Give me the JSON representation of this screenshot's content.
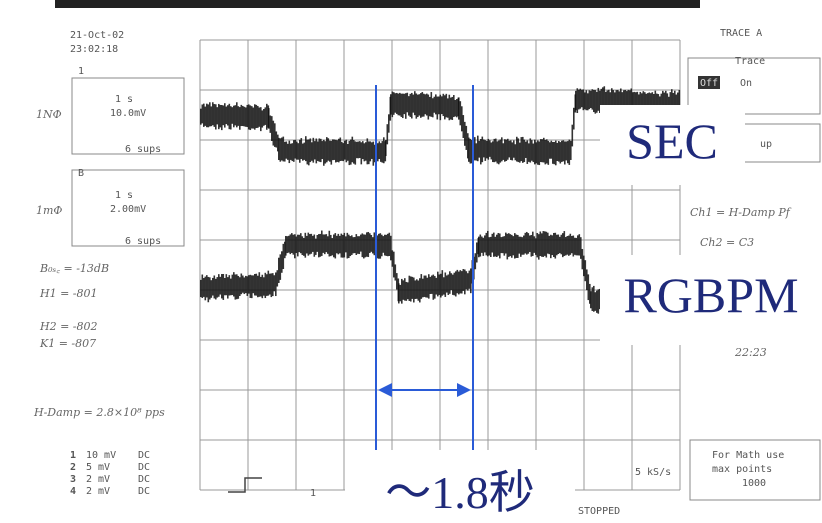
{
  "header": {
    "date": "21-Oct-02",
    "time": "23:02:18",
    "trace": "TRACE A"
  },
  "channels": [
    {
      "number": "1",
      "label": "1NΦ",
      "timebase": "1 s",
      "scale": "10.0mV",
      "sweeps": "6 sups"
    },
    {
      "number": "B",
      "label": "1mΦ",
      "timebase": "1 s",
      "scale": "2.00mV",
      "sweeps": "6 sups"
    }
  ],
  "trace_box": {
    "title": "Trace",
    "off": "Off",
    "on": "On"
  },
  "setup": "up",
  "notes": [
    "B₀ₛ꜀ = -13dB",
    "H1 = -801",
    "H2 = -802",
    "K1 = -807",
    "H-Damp = 2.8×10⁸ pps"
  ],
  "right_notes": [
    "Ch1 = H-Damp Pf",
    "Ch2 = C3",
    "22:23"
  ],
  "inputs": [
    {
      "number": "1",
      "scale": "10 mV",
      "coupling": "DC"
    },
    {
      "number": "2",
      "scale": "5 mV",
      "coupling": "DC"
    },
    {
      "number": "3",
      "scale": "2 mV",
      "coupling": "DC"
    },
    {
      "number": "4",
      "scale": "2 mV",
      "coupling": "DC"
    }
  ],
  "trigger_channel": "1",
  "sample_rate": "5 kS/s",
  "math_box": [
    "For Math use",
    "max points",
    "1000"
  ],
  "status": "STOPPED",
  "overlays": {
    "top": "SEC",
    "bottom": "RGBPM",
    "period": "～1.8秒"
  }
}
